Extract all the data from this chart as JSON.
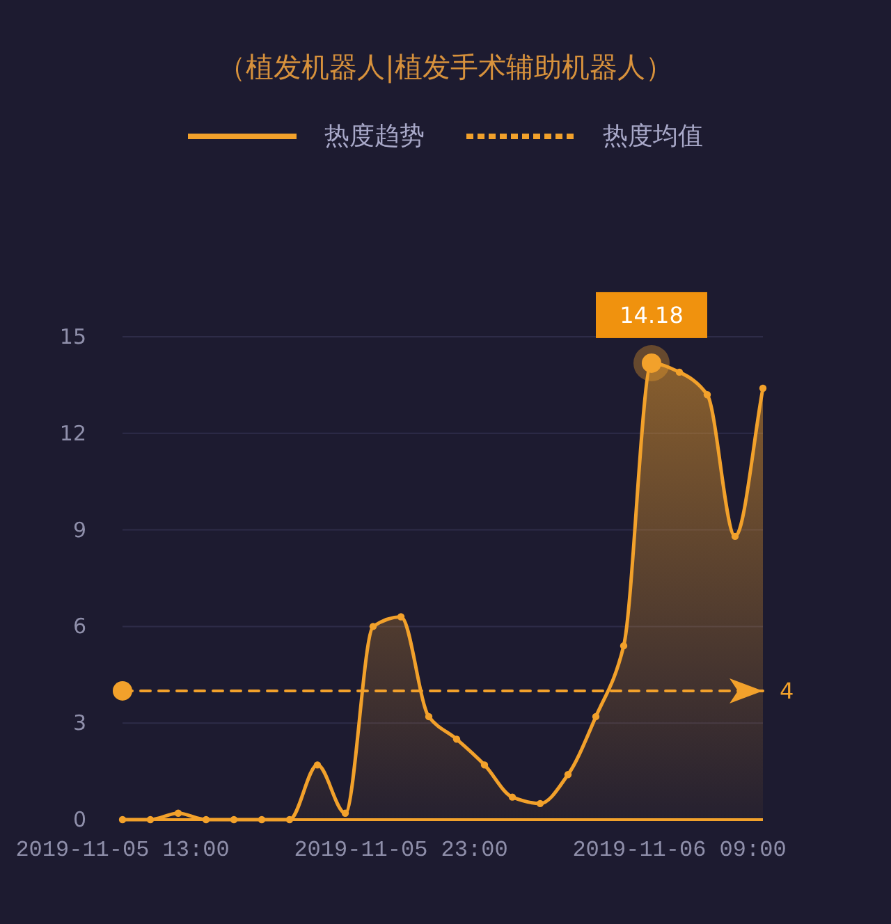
{
  "chart_data": {
    "type": "area",
    "title": "（植发机器人|植发手术辅助机器人）",
    "categories": [
      "2019-11-05 13:00",
      null,
      null,
      null,
      null,
      null,
      null,
      null,
      null,
      null,
      "2019-11-05 23:00",
      null,
      null,
      null,
      null,
      null,
      null,
      null,
      null,
      null,
      "2019-11-06 09:00",
      null,
      null,
      null
    ],
    "ylim": [
      0,
      15
    ],
    "yticks": [
      0,
      3,
      6,
      9,
      12,
      15
    ],
    "grid": "y",
    "legend": "top",
    "series": [
      {
        "name": "热度趋势",
        "color": "#f2a12b",
        "marker": "circle",
        "line_style": "solid",
        "values": [
          0,
          0,
          0.2,
          0,
          0,
          0,
          0,
          1.7,
          0.2,
          6.0,
          6.3,
          3.2,
          2.5,
          1.7,
          0.7,
          0.5,
          1.4,
          3.2,
          5.4,
          14.18,
          13.9,
          13.2,
          8.8,
          13.4
        ],
        "value_labels": [
          null,
          null,
          null,
          null,
          null,
          null,
          null,
          null,
          null,
          null,
          null,
          null,
          null,
          null,
          null,
          null,
          null,
          null,
          null,
          "14.18",
          null,
          null,
          null,
          null
        ]
      },
      {
        "name": "热度均值",
        "type": "line",
        "color": "#f2a12b",
        "marker": "none",
        "line_style": "dashed",
        "values": [
          4,
          4,
          4,
          4,
          4,
          4,
          4,
          4,
          4,
          4,
          4,
          4,
          4,
          4,
          4,
          4,
          4,
          4,
          4,
          4,
          4,
          4,
          4,
          4
        ],
        "value_labels": [
          null,
          null,
          null,
          null,
          null,
          null,
          null,
          null,
          null,
          null,
          null,
          null,
          null,
          null,
          null,
          null,
          null,
          null,
          null,
          null,
          null,
          null,
          null,
          "4"
        ]
      }
    ]
  }
}
